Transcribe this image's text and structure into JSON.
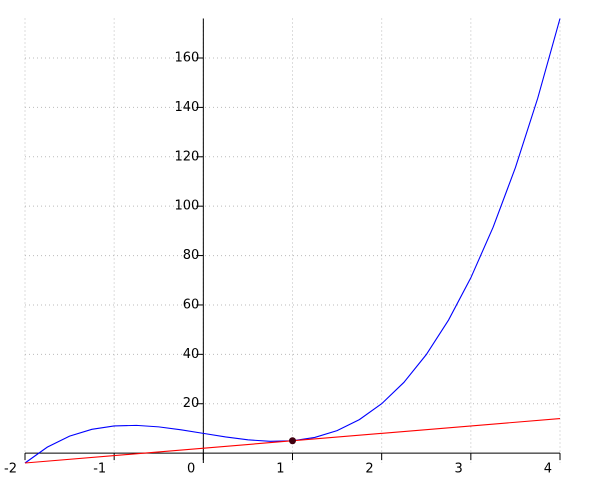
{
  "chart_data": {
    "type": "line",
    "xlim": [
      -2,
      4
    ],
    "ylim": [
      -4,
      176
    ],
    "xticks": [
      -2,
      -1,
      0,
      1,
      2,
      3,
      4
    ],
    "yticks": [
      20,
      40,
      60,
      80,
      100,
      120,
      140,
      160
    ],
    "grid": true,
    "series": [
      {
        "color": "#0000ff",
        "x": [
          -2,
          -1.75,
          -1.5,
          -1.25,
          -1,
          -0.75,
          -0.5,
          -0.25,
          0,
          0.25,
          0.5,
          0.75,
          1,
          1.25,
          1.5,
          1.75,
          2,
          2.25,
          2.5,
          2.75,
          3,
          3.25,
          3.5,
          3.75,
          4
        ],
        "values": [
          -4,
          2.422,
          6.875,
          9.641,
          11,
          11.234,
          10.625,
          9.453,
          8,
          6.547,
          5.375,
          4.766,
          5,
          6.359,
          9.125,
          13.578,
          20,
          28.672,
          39.875,
          53.891,
          71,
          91.484,
          115.625,
          143.703,
          176
        ]
      },
      {
        "color": "#ff0000",
        "x": [
          -2,
          4
        ],
        "values": [
          -4,
          14
        ]
      },
      {
        "color": "#400010",
        "style": "point",
        "x": [
          1
        ],
        "values": [
          5
        ]
      }
    ]
  }
}
